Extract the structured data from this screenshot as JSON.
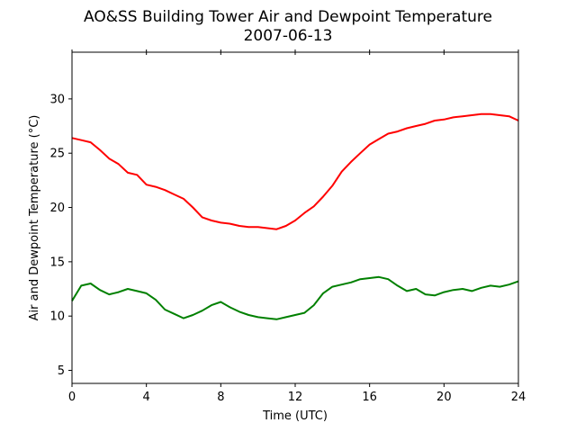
{
  "chart_data": {
    "type": "line",
    "title": "AO&SS Building Tower Air and Dewpoint Temperature",
    "subtitle": "2007-06-13",
    "xlabel": "Time (UTC)",
    "ylabel": "Air and Dewpoint Temperature (°C)",
    "xlim": [
      0,
      24
    ],
    "ylim": [
      3.8,
      34.3
    ],
    "xticks": [
      0,
      4,
      8,
      12,
      16,
      20,
      24
    ],
    "yticks": [
      5,
      10,
      15,
      20,
      25,
      30
    ],
    "grid": false,
    "legend": "none",
    "series": [
      {
        "key": "air",
        "color": "#ff0000",
        "x": [
          0,
          0.5,
          1,
          1.5,
          2,
          2.5,
          3,
          3.5,
          4,
          4.5,
          5,
          5.5,
          6,
          6.5,
          7,
          7.5,
          8,
          8.5,
          9,
          9.5,
          10,
          10.5,
          11,
          11.5,
          12,
          12.5,
          13,
          13.5,
          14,
          14.5,
          15,
          15.5,
          16,
          16.5,
          17,
          17.5,
          18,
          18.5,
          19,
          19.5,
          20,
          20.5,
          21,
          21.5,
          22,
          22.5,
          23,
          23.5,
          24
        ],
        "y": [
          26.4,
          26.2,
          26.0,
          25.3,
          24.5,
          24.0,
          23.2,
          23.0,
          22.1,
          21.9,
          21.6,
          21.2,
          20.8,
          20.0,
          19.1,
          18.8,
          18.6,
          18.5,
          18.3,
          18.2,
          18.2,
          18.1,
          18.0,
          18.3,
          18.8,
          19.5,
          20.1,
          21.0,
          22.0,
          23.3,
          24.2,
          25.0,
          25.8,
          26.3,
          26.8,
          27.0,
          27.3,
          27.5,
          27.7,
          28.0,
          28.1,
          28.3,
          28.4,
          28.5,
          28.6,
          28.6,
          28.5,
          28.4,
          28.0
        ]
      },
      {
        "key": "dewpoint",
        "color": "#008000",
        "x": [
          0,
          0.5,
          1,
          1.5,
          2,
          2.5,
          3,
          3.5,
          4,
          4.5,
          5,
          5.5,
          6,
          6.5,
          7,
          7.5,
          8,
          8.5,
          9,
          9.5,
          10,
          10.5,
          11,
          11.5,
          12,
          12.5,
          13,
          13.5,
          14,
          14.5,
          15,
          15.5,
          16,
          16.5,
          17,
          17.5,
          18,
          18.5,
          19,
          19.5,
          20,
          20.5,
          21,
          21.5,
          22,
          22.5,
          23,
          23.5,
          24
        ],
        "y": [
          11.4,
          12.8,
          13.0,
          12.4,
          12.0,
          12.2,
          12.5,
          12.3,
          12.1,
          11.5,
          10.6,
          10.2,
          9.8,
          10.1,
          10.5,
          11.0,
          11.3,
          10.8,
          10.4,
          10.1,
          9.9,
          9.8,
          9.7,
          9.9,
          10.1,
          10.3,
          11.0,
          12.1,
          12.7,
          12.9,
          13.1,
          13.4,
          13.5,
          13.6,
          13.4,
          12.8,
          12.3,
          12.5,
          12.0,
          11.9,
          12.2,
          12.4,
          12.5,
          12.3,
          12.6,
          12.8,
          12.7,
          12.9,
          13.2
        ]
      }
    ]
  }
}
